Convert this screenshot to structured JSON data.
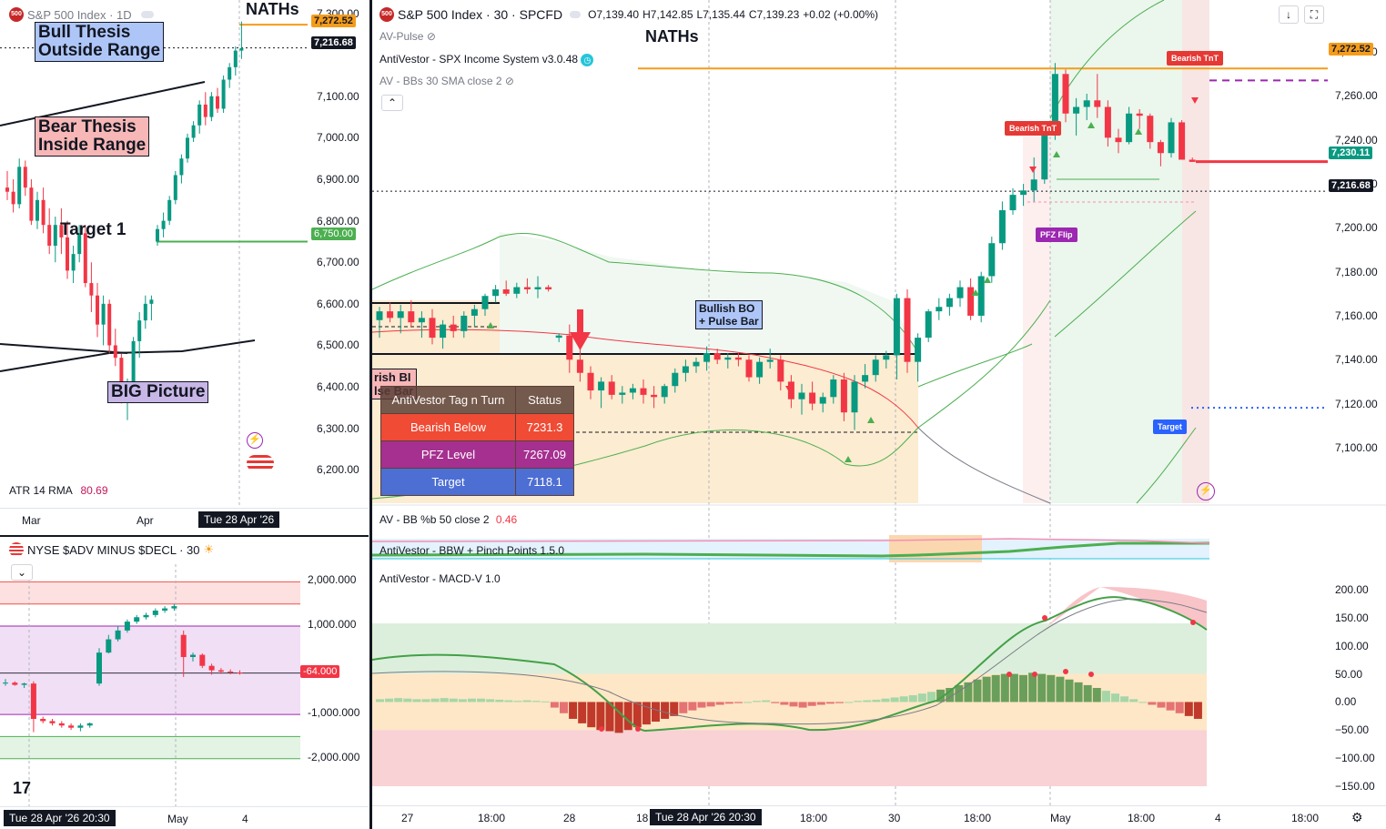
{
  "colors": {
    "up": "#089981",
    "down": "#f23645",
    "orange": "#f59c1a",
    "green": "#4caf50",
    "purple": "#9c27b0",
    "blue": "#2962ff",
    "band_orange": "#fbe6c2",
    "band_green": "#e6f4e8"
  },
  "left_chart": {
    "title": "S&P 500 Index · 1D",
    "labels": {
      "naths": "NATHs",
      "bull": "Bull Thesis\nOutside Range",
      "bear": "Bear Thesis\nInside Range",
      "target1": "Target 1",
      "big": "BIG Picture"
    },
    "price_ticks": [
      "7,300.00",
      "7,100.00",
      "7,000.00",
      "6,900.00",
      "6,800.00",
      "6,700.00",
      "6,600.00",
      "6,500.00",
      "6,400.00",
      "6,300.00",
      "6,200.00"
    ],
    "price_labels": {
      "naths": "7,272.52",
      "last": "7,216.68",
      "target": "6,750.00"
    },
    "atr_label": "ATR 14 RMA",
    "atr_value": "80.69",
    "time_ticks": [
      "Mar",
      "Apr"
    ],
    "time_cursor": "Tue 28 Apr '26"
  },
  "breadth_chart": {
    "title": "NYSE $ADV MINUS $DECL · 30",
    "ticks": [
      "2,000.000",
      "1,000.000",
      "-1,000.000",
      "-2,000.000"
    ],
    "last_label": "-64.000",
    "time_ticks": [
      "May",
      "4"
    ],
    "time_cursor": "Tue 28 Apr '26  20:30"
  },
  "main_chart": {
    "title": "S&P 500 Index · 30 · SPCFD",
    "ohlc": {
      "o": "O7,139.40",
      "h": "H7,142.85",
      "l": "L7,135.44",
      "c": "C7,139.23",
      "chg": "+0.02 (+0.00%)"
    },
    "indicators": [
      "AV-Pulse",
      "AntiVestor - SPX Income System v3.0.48",
      "AV - BBs 30 SMA close 2"
    ],
    "labels": {
      "naths": "NATHs",
      "bullish_bo": "Bullish BO\n+ Pulse Bar",
      "bearish_bi": "rish BI\nlse Bar"
    },
    "tags": {
      "bearish_tnt1": "Bearish TnT",
      "bearish_tnt2": "Bearish TnT",
      "pfz": "PFZ Flip",
      "target": "Target"
    },
    "price_ticks": [
      "7,280.00",
      "7,260.00",
      "7,240.00",
      "7,220.00",
      "7,200.00",
      "7,180.00",
      "7,160.00",
      "7,140.00",
      "7,120.00",
      "7,100.00"
    ],
    "price_labels": {
      "naths": "7,272.52",
      "current": "7,230.11",
      "last": "7,216.68"
    },
    "table": {
      "headers": [
        "AntiVestor Tag n Turn",
        "Status"
      ],
      "rows": [
        [
          "Bearish Below",
          "7231.3"
        ],
        [
          "PFZ Level",
          "7267.09"
        ],
        [
          "Target",
          "7118.1"
        ]
      ]
    },
    "bb_label": "AV - BB %b 50 close 2",
    "bb_value": "0.46",
    "bbw_label": "AntiVestor - BBW + Pinch Points 1.5.0",
    "macd_label": "AntiVestor - MACD-V 1.0",
    "macd_ticks": [
      "200.00",
      "150.00",
      "100.00",
      "50.00",
      "0.00",
      "−50.00",
      "−100.00",
      "−150.00"
    ],
    "time_ticks": [
      "27",
      "18:00",
      "28",
      "18",
      "18:00",
      "30",
      "18:00",
      "May",
      "18:00",
      "4",
      "18:00"
    ],
    "time_cursor": "Tue 28 Apr '26  20:30"
  },
  "chart_data": [
    {
      "type": "candlestick",
      "title": "S&P 500 Index · 1D",
      "ylim": [
        6170,
        7310
      ],
      "candles": [
        [
          6880,
          6920,
          6850,
          6870
        ],
        [
          6870,
          6900,
          6820,
          6840
        ],
        [
          6840,
          6950,
          6830,
          6930
        ],
        [
          6930,
          6945,
          6860,
          6880
        ],
        [
          6880,
          6900,
          6790,
          6800
        ],
        [
          6800,
          6870,
          6780,
          6850
        ],
        [
          6850,
          6880,
          6770,
          6790
        ],
        [
          6790,
          6830,
          6720,
          6740
        ],
        [
          6740,
          6810,
          6700,
          6790
        ],
        [
          6790,
          6830,
          6720,
          6760
        ],
        [
          6760,
          6800,
          6660,
          6680
        ],
        [
          6680,
          6740,
          6650,
          6720
        ],
        [
          6720,
          6790,
          6700,
          6770
        ],
        [
          6770,
          6790,
          6640,
          6650
        ],
        [
          6650,
          6700,
          6580,
          6620
        ],
        [
          6620,
          6650,
          6520,
          6550
        ],
        [
          6550,
          6620,
          6500,
          6600
        ],
        [
          6600,
          6610,
          6480,
          6500
        ],
        [
          6500,
          6540,
          6450,
          6470
        ],
        [
          6470,
          6480,
          6360,
          6380
        ],
        [
          6380,
          6420,
          6320,
          6400
        ],
        [
          6400,
          6520,
          6380,
          6510
        ],
        [
          6510,
          6580,
          6470,
          6560
        ],
        [
          6560,
          6620,
          6540,
          6600
        ],
        [
          6600,
          6620,
          6560,
          6610
        ],
        [
          6750,
          6790,
          6740,
          6780
        ],
        [
          6780,
          6820,
          6760,
          6800
        ],
        [
          6800,
          6860,
          6790,
          6850
        ],
        [
          6850,
          6920,
          6840,
          6910
        ],
        [
          6910,
          6960,
          6890,
          6950
        ],
        [
          6950,
          7010,
          6940,
          7000
        ],
        [
          7000,
          7040,
          6990,
          7030
        ],
        [
          7030,
          7090,
          7010,
          7080
        ],
        [
          7080,
          7110,
          7030,
          7050
        ],
        [
          7050,
          7110,
          7040,
          7100
        ],
        [
          7100,
          7120,
          7060,
          7070
        ],
        [
          7070,
          7150,
          7060,
          7140
        ],
        [
          7140,
          7180,
          7120,
          7170
        ],
        [
          7170,
          7220,
          7150,
          7210
        ],
        [
          7210,
          7280,
          7190,
          7216
        ]
      ]
    },
    {
      "type": "candlestick",
      "title": "NYSE $ADV MINUS $DECL · 30",
      "ylim": [
        -2500,
        2400
      ],
      "candles": [
        [
          -300,
          -200,
          -350,
          -280
        ],
        [
          -280,
          -250,
          -350,
          -330
        ],
        [
          -330,
          -280,
          -400,
          -300
        ],
        [
          -300,
          -250,
          -1400,
          -1100
        ],
        [
          -1100,
          -1050,
          -1200,
          -1150
        ],
        [
          -1150,
          -1100,
          -1250,
          -1200
        ],
        [
          -1200,
          -1150,
          -1300,
          -1250
        ],
        [
          -1250,
          -1200,
          -1350,
          -1300
        ],
        [
          -1300,
          -1200,
          -1380,
          -1250
        ],
        [
          -1250,
          -1180,
          -1300,
          -1200
        ],
        [
          -300,
          500,
          -350,
          400
        ],
        [
          400,
          800,
          380,
          700
        ],
        [
          700,
          1000,
          650,
          900
        ],
        [
          900,
          1150,
          850,
          1100
        ],
        [
          1100,
          1250,
          1050,
          1200
        ],
        [
          1200,
          1300,
          1150,
          1250
        ],
        [
          1250,
          1400,
          1200,
          1350
        ],
        [
          1350,
          1450,
          1300,
          1400
        ],
        [
          1400,
          1500,
          1350,
          1450
        ],
        [
          800,
          900,
          -150,
          300
        ],
        [
          300,
          400,
          200,
          350
        ],
        [
          350,
          380,
          50,
          100
        ],
        [
          100,
          150,
          -100,
          0
        ],
        [
          0,
          50,
          -80,
          -30
        ],
        [
          -30,
          20,
          -90,
          -50
        ],
        [
          -50,
          0,
          -100,
          -64
        ]
      ]
    },
    {
      "type": "candlestick",
      "title": "S&P 500 Index · 30 · SPCFD",
      "ylim": [
        7090,
        7290
      ],
      "candles": [
        [
          7158,
          7164,
          7150,
          7162
        ],
        [
          7162,
          7166,
          7157,
          7159
        ],
        [
          7159,
          7165,
          7152,
          7162
        ],
        [
          7162,
          7167,
          7155,
          7157
        ],
        [
          7157,
          7162,
          7150,
          7159
        ],
        [
          7159,
          7163,
          7147,
          7150
        ],
        [
          7150,
          7158,
          7145,
          7156
        ],
        [
          7156,
          7160,
          7150,
          7153
        ],
        [
          7153,
          7162,
          7150,
          7160
        ],
        [
          7160,
          7165,
          7155,
          7163
        ],
        [
          7163,
          7170,
          7160,
          7169
        ],
        [
          7169,
          7174,
          7166,
          7172
        ],
        [
          7172,
          7176,
          7169,
          7170
        ],
        [
          7170,
          7175,
          7168,
          7173
        ],
        [
          7173,
          7177,
          7170,
          7172
        ],
        [
          7172,
          7178,
          7168,
          7173
        ],
        [
          7173,
          7174,
          7171,
          7172
        ],
        [
          7150,
          7152,
          7148,
          7151
        ],
        [
          7151,
          7156,
          7134,
          7140
        ],
        [
          7140,
          7145,
          7130,
          7134
        ],
        [
          7134,
          7137,
          7122,
          7126
        ],
        [
          7126,
          7132,
          7118,
          7130
        ],
        [
          7130,
          7133,
          7122,
          7124
        ],
        [
          7124,
          7128,
          7120,
          7125
        ],
        [
          7125,
          7129,
          7122,
          7127
        ],
        [
          7127,
          7131,
          7120,
          7124
        ],
        [
          7124,
          7128,
          7118,
          7123
        ],
        [
          7123,
          7129,
          7120,
          7128
        ],
        [
          7128,
          7136,
          7125,
          7134
        ],
        [
          7134,
          7140,
          7130,
          7137
        ],
        [
          7137,
          7141,
          7134,
          7139
        ],
        [
          7139,
          7146,
          7135,
          7143
        ],
        [
          7143,
          7145,
          7138,
          7140
        ],
        [
          7140,
          7143,
          7136,
          7141
        ],
        [
          7141,
          7143,
          7137,
          7140
        ],
        [
          7140,
          7142,
          7130,
          7132
        ],
        [
          7132,
          7141,
          7129,
          7139
        ],
        [
          7139,
          7145,
          7136,
          7140
        ],
        [
          7140,
          7142,
          7126,
          7130
        ],
        [
          7130,
          7133,
          7118,
          7122
        ],
        [
          7122,
          7129,
          7115,
          7125
        ],
        [
          7125,
          7130,
          7117,
          7120
        ],
        [
          7120,
          7125,
          7116,
          7123
        ],
        [
          7123,
          7133,
          7120,
          7131
        ],
        [
          7131,
          7134,
          7112,
          7116
        ],
        [
          7116,
          7133,
          7108,
          7130
        ],
        [
          7130,
          7138,
          7127,
          7133
        ],
        [
          7133,
          7142,
          7130,
          7140
        ],
        [
          7140,
          7144,
          7136,
          7142
        ],
        [
          7142,
          7170,
          7131,
          7168
        ],
        [
          7168,
          7172,
          7134,
          7139
        ],
        [
          7139,
          7152,
          7130,
          7150
        ],
        [
          7150,
          7163,
          7148,
          7162
        ],
        [
          7162,
          7168,
          7158,
          7164
        ],
        [
          7164,
          7170,
          7160,
          7168
        ],
        [
          7168,
          7176,
          7164,
          7173
        ],
        [
          7173,
          7177,
          7158,
          7160
        ],
        [
          7160,
          7180,
          7157,
          7178
        ],
        [
          7178,
          7196,
          7175,
          7193
        ],
        [
          7193,
          7212,
          7190,
          7208
        ],
        [
          7208,
          7218,
          7206,
          7215
        ],
        [
          7215,
          7220,
          7210,
          7217
        ],
        [
          7217,
          7232,
          7212,
          7222
        ],
        [
          7222,
          7248,
          7220,
          7244
        ],
        [
          7244,
          7275,
          7240,
          7270
        ],
        [
          7270,
          7272,
          7248,
          7252
        ],
        [
          7252,
          7259,
          7242,
          7255
        ],
        [
          7255,
          7261,
          7249,
          7258
        ],
        [
          7258,
          7270,
          7250,
          7255
        ],
        [
          7255,
          7258,
          7237,
          7241
        ],
        [
          7241,
          7245,
          7234,
          7239
        ],
        [
          7239,
          7255,
          7238,
          7252
        ],
        [
          7252,
          7254,
          7245,
          7251
        ],
        [
          7251,
          7252,
          7236,
          7239
        ],
        [
          7239,
          7240,
          7228,
          7234
        ],
        [
          7234,
          7250,
          7232,
          7248
        ],
        [
          7248,
          7249,
          7232,
          7231
        ],
        [
          7231,
          7232,
          7230,
          7230
        ]
      ]
    },
    {
      "type": "bar",
      "title": "AntiVestor - MACD-V 1.0",
      "ylim": [
        -150,
        200
      ],
      "values": [
        5,
        6,
        7,
        6,
        5,
        5,
        6,
        7,
        6,
        5,
        6,
        6,
        5,
        4,
        3,
        2,
        3,
        2,
        1,
        -10,
        -20,
        -30,
        -38,
        -45,
        -50,
        -52,
        -55,
        -50,
        -45,
        -40,
        -35,
        -30,
        -25,
        -20,
        -15,
        -10,
        -8,
        -5,
        -3,
        -2,
        0,
        2,
        3,
        -2,
        -5,
        -8,
        -10,
        -7,
        -5,
        -3,
        -2,
        0,
        2,
        3,
        4,
        6,
        8,
        10,
        12,
        15,
        18,
        22,
        25,
        30,
        35,
        40,
        45,
        48,
        50,
        50,
        48,
        52,
        50,
        48,
        45,
        40,
        35,
        30,
        25,
        20,
        15,
        10,
        5,
        0,
        -5,
        -10,
        -15,
        -20,
        -25,
        -30
      ]
    }
  ]
}
